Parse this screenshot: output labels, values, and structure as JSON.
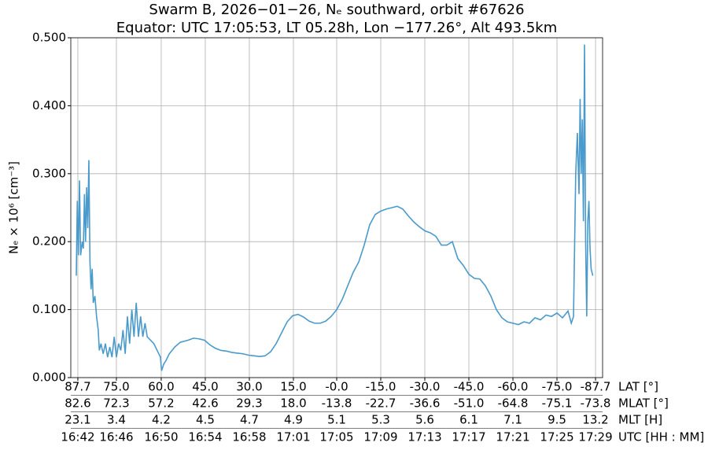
{
  "chart_data": {
    "type": "line",
    "title": [
      "Swarm B, 2026−01−26, Nₑ southward, orbit #67626",
      "Equator: UTC 17:05:53, LT 05.28h, Lon −177.26°, Alt 493.5km"
    ],
    "ylabel": "Nₑ × 10⁶ [cm⁻³]",
    "grid": true,
    "xlim": [
      41.36,
      89.64
    ],
    "ylim": [
      0,
      0.5
    ],
    "yticks": [
      {
        "value": 0,
        "label": "0.000"
      },
      {
        "value": 0.1,
        "label": "0.100"
      },
      {
        "value": 0.2,
        "label": "0.200"
      },
      {
        "value": 0.3,
        "label": "0.300"
      },
      {
        "value": 0.4,
        "label": "0.400"
      },
      {
        "value": 0.5,
        "label": "0.500"
      }
    ],
    "xticks": [
      {
        "value": 42,
        "label": "16:42"
      },
      {
        "value": 45.5,
        "label": "16:46"
      },
      {
        "value": 49.57,
        "label": "16:50"
      },
      {
        "value": 53.57,
        "label": "16:54"
      },
      {
        "value": 57.57,
        "label": "16:58"
      },
      {
        "value": 61.57,
        "label": "17:01"
      },
      {
        "value": 65.5,
        "label": "17:05"
      },
      {
        "value": 69.5,
        "label": "17:09"
      },
      {
        "value": 73.5,
        "label": "17:13"
      },
      {
        "value": 77.5,
        "label": "17:17"
      },
      {
        "value": 81.5,
        "label": "17:21"
      },
      {
        "value": 85.5,
        "label": "17:25"
      },
      {
        "value": 89,
        "label": "17:29"
      }
    ],
    "xlabel": "UTC [HH : MM]",
    "tick_rows": [
      {
        "name": "LAT [°]",
        "labels": [
          "87.7",
          "75.0",
          "60.0",
          "45.0",
          "30.0",
          "15.0",
          "-0.0",
          "-15.0",
          "-30.0",
          "-45.0",
          "-60.0",
          "-75.0",
          "-87.7"
        ]
      },
      {
        "name": "MLAT [°]",
        "labels": [
          "82.6",
          "72.3",
          "57.2",
          "42.6",
          "29.3",
          "18.0",
          "-13.8",
          "-22.7",
          "-36.6",
          "-51.0",
          "-64.8",
          "-75.1",
          "-73.8"
        ]
      },
      {
        "name": "MLT [H]",
        "labels": [
          "23.1",
          "3.4",
          "4.2",
          "4.5",
          "4.7",
          "4.9",
          "5.1",
          "5.3",
          "5.6",
          "6.1",
          "7.1",
          "9.5",
          "13.2"
        ]
      }
    ],
    "series": [
      {
        "color": "#4a9acb",
        "x": [
          41.86,
          41.95,
          42.05,
          42.15,
          42.25,
          42.4,
          42.5,
          42.6,
          42.7,
          42.8,
          42.9,
          43.0,
          43.1,
          43.2,
          43.3,
          43.4,
          43.55,
          43.7,
          43.85,
          43.95,
          44.1,
          44.3,
          44.5,
          44.7,
          44.9,
          45.1,
          45.3,
          45.5,
          45.7,
          45.9,
          46.1,
          46.3,
          46.5,
          46.7,
          46.9,
          47.1,
          47.3,
          47.5,
          47.7,
          47.9,
          48.1,
          48.3,
          48.6,
          48.9,
          49.2,
          49.5,
          49.6,
          49.8,
          50.0,
          50.3,
          50.8,
          51.3,
          52.0,
          52.5,
          53.0,
          53.5,
          54.0,
          54.5,
          55.0,
          55.5,
          56.0,
          56.5,
          57.0,
          57.5,
          58.0,
          58.5,
          59.0,
          59.5,
          60.0,
          60.5,
          61.0,
          61.5,
          62.0,
          62.5,
          63.0,
          63.5,
          64.0,
          64.5,
          65.0,
          65.5,
          66.0,
          66.5,
          67.0,
          67.5,
          68.0,
          68.5,
          69.0,
          69.5,
          70.0,
          70.5,
          71.0,
          71.5,
          72.0,
          72.5,
          73.0,
          73.5,
          74.0,
          74.5,
          75.0,
          75.5,
          76.0,
          76.5,
          77.0,
          77.5,
          78.0,
          78.5,
          79.0,
          79.5,
          80.0,
          80.5,
          81.0,
          81.5,
          82.0,
          82.5,
          83.0,
          83.5,
          84.0,
          84.5,
          85.0,
          85.5,
          86.0,
          86.5,
          86.8,
          87.0,
          87.2,
          87.35,
          87.5,
          87.6,
          87.7,
          87.8,
          87.9,
          88.0,
          88.1,
          88.2,
          88.3,
          88.4,
          88.5,
          88.6,
          88.75
        ],
        "values": [
          0.15,
          0.26,
          0.18,
          0.29,
          0.18,
          0.2,
          0.19,
          0.27,
          0.2,
          0.28,
          0.22,
          0.32,
          0.17,
          0.13,
          0.16,
          0.11,
          0.12,
          0.09,
          0.07,
          0.04,
          0.05,
          0.035,
          0.05,
          0.03,
          0.045,
          0.03,
          0.06,
          0.03,
          0.05,
          0.04,
          0.07,
          0.035,
          0.09,
          0.05,
          0.1,
          0.06,
          0.11,
          0.06,
          0.09,
          0.06,
          0.08,
          0.06,
          0.055,
          0.05,
          0.04,
          0.03,
          0.01,
          0.02,
          0.025,
          0.035,
          0.045,
          0.052,
          0.055,
          0.058,
          0.057,
          0.055,
          0.048,
          0.043,
          0.04,
          0.039,
          0.037,
          0.036,
          0.035,
          0.033,
          0.032,
          0.031,
          0.032,
          0.038,
          0.05,
          0.066,
          0.082,
          0.091,
          0.093,
          0.089,
          0.083,
          0.08,
          0.08,
          0.083,
          0.09,
          0.1,
          0.115,
          0.135,
          0.155,
          0.17,
          0.195,
          0.225,
          0.24,
          0.245,
          0.248,
          0.25,
          0.252,
          0.248,
          0.238,
          0.229,
          0.222,
          0.216,
          0.213,
          0.208,
          0.195,
          0.195,
          0.2,
          0.175,
          0.165,
          0.152,
          0.146,
          0.145,
          0.135,
          0.12,
          0.1,
          0.088,
          0.082,
          0.08,
          0.078,
          0.082,
          0.08,
          0.088,
          0.085,
          0.092,
          0.09,
          0.095,
          0.088,
          0.098,
          0.08,
          0.09,
          0.3,
          0.36,
          0.27,
          0.41,
          0.3,
          0.38,
          0.23,
          0.49,
          0.2,
          0.09,
          0.23,
          0.26,
          0.19,
          0.16,
          0.15
        ]
      }
    ]
  }
}
